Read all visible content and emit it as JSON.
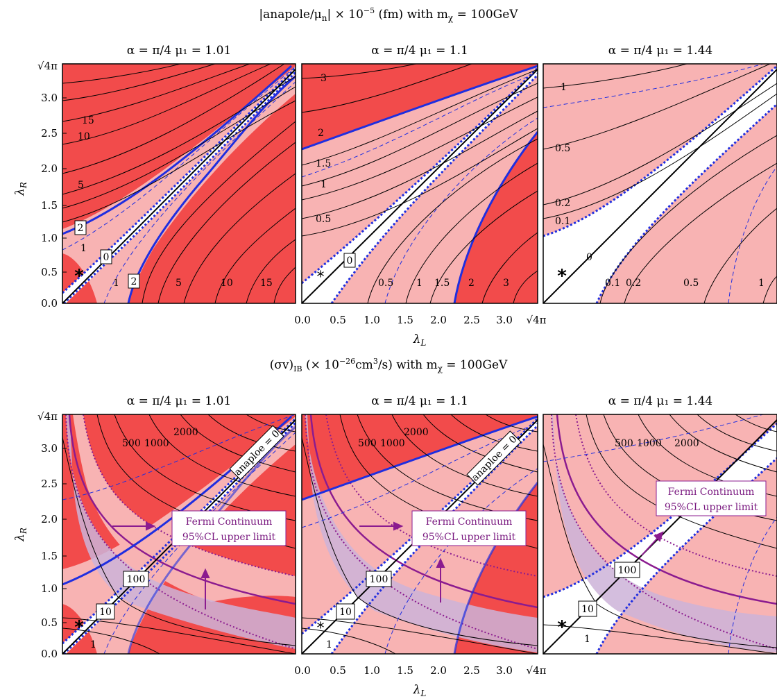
{
  "figure": {
    "top_title": "|anapole/μ",
    "top_title_sub": "n",
    "top_title_rest": "| × 10",
    "top_title_exp": "−5",
    "top_title_tail": " (fm)  with  m",
    "top_title_chi": "χ",
    "top_title_mass": " = 100GeV",
    "bottom_title_pre": "(σv)",
    "bottom_title_sub": "IB",
    "bottom_title_mid": " (× 10",
    "bottom_title_exp": "−26",
    "bottom_title_unit": "cm",
    "bottom_title_unit_exp": "3",
    "bottom_title_tail": "/s)  with  m",
    "bottom_title_chi": "χ",
    "bottom_title_mass": " = 100GeV",
    "xlabel": "λ",
    "xlabel_sub": "L",
    "ylabel": "λ",
    "ylabel_sub": "R",
    "sqrt4pi_label": "√4π",
    "fermi_line1": "Fermi Continuum",
    "fermi_line2": "95%CL upper limit",
    "anapole_zero_label": "anaploe = 0"
  },
  "colors": {
    "dark_red": "#f24b4b",
    "light_pink": "#f8b3b3",
    "white": "#ffffff",
    "blue": "#1f2ee0",
    "purple": "#8b1b8f",
    "lavender_fill": "#cdb3d8",
    "black": "#000000"
  },
  "chart_data": [
    {
      "type": "contour",
      "row": "anapole",
      "panel_title": "α = π/4   μ₁ = 1.01",
      "xlim": [
        0,
        3.5449
      ],
      "ylim": [
        0,
        3.5449
      ],
      "yticks": [
        "0.0",
        "0.5",
        "1.0",
        "1.5",
        "2.0",
        "2.5",
        "3.0",
        "√4π"
      ],
      "contour_labels_left": [
        "15",
        "10",
        "5",
        "2",
        "1",
        "0"
      ],
      "contour_labels_bottom": [
        "1",
        "2",
        "5",
        "10",
        "15"
      ],
      "marker": "*"
    },
    {
      "type": "contour",
      "row": "anapole",
      "panel_title": "α = π/4   μ₁ = 1.1",
      "xlim": [
        0,
        3.5449
      ],
      "ylim": [
        0,
        3.5449
      ],
      "xticks": [
        "0.0",
        "0.5",
        "1.0",
        "1.5",
        "2.0",
        "2.5",
        "3.0",
        "√4π"
      ],
      "contour_labels_left": [
        "3",
        "2",
        "1.5",
        "1",
        "0.5",
        "0"
      ],
      "contour_labels_bottom": [
        "0.5",
        "1",
        "1.5",
        "2",
        "3"
      ],
      "marker": "*"
    },
    {
      "type": "contour",
      "row": "anapole",
      "panel_title": "α = π/4   μ₁ = 1.44",
      "xlim": [
        0,
        3.5449
      ],
      "ylim": [
        0,
        3.5449
      ],
      "contour_labels_left": [
        "1",
        "0.5",
        "0.2",
        "0.1",
        "0"
      ],
      "contour_labels_bottom": [
        "0.1",
        "0.2",
        "0.5",
        "1"
      ],
      "marker": "*"
    },
    {
      "type": "contour",
      "row": "sigma_v",
      "panel_title": "α = π/4   μ₁ = 1.01",
      "xlim": [
        0,
        3.5449
      ],
      "ylim": [
        0,
        3.5449
      ],
      "yticks": [
        "0.0",
        "0.5",
        "1.0",
        "1.5",
        "2.0",
        "2.5",
        "3.0",
        "√4π"
      ],
      "contour_labels": [
        "500",
        "1000",
        "2000",
        "100",
        "10",
        "1"
      ],
      "marker": "*"
    },
    {
      "type": "contour",
      "row": "sigma_v",
      "panel_title": "α = π/4   μ₁ = 1.1",
      "xlim": [
        0,
        3.5449
      ],
      "ylim": [
        0,
        3.5449
      ],
      "xticks": [
        "0.0",
        "0.5",
        "1.0",
        "1.5",
        "2.0",
        "2.5",
        "3.0",
        "√4π"
      ],
      "contour_labels": [
        "500",
        "1000",
        "2000",
        "100",
        "10",
        "1"
      ],
      "marker": "*"
    },
    {
      "type": "contour",
      "row": "sigma_v",
      "panel_title": "α = π/4   μ₁ = 1.44",
      "xlim": [
        0,
        3.5449
      ],
      "ylim": [
        0,
        3.5449
      ],
      "contour_labels": [
        "500",
        "1000",
        "2000",
        "100",
        "10",
        "1"
      ],
      "marker": "*"
    }
  ]
}
